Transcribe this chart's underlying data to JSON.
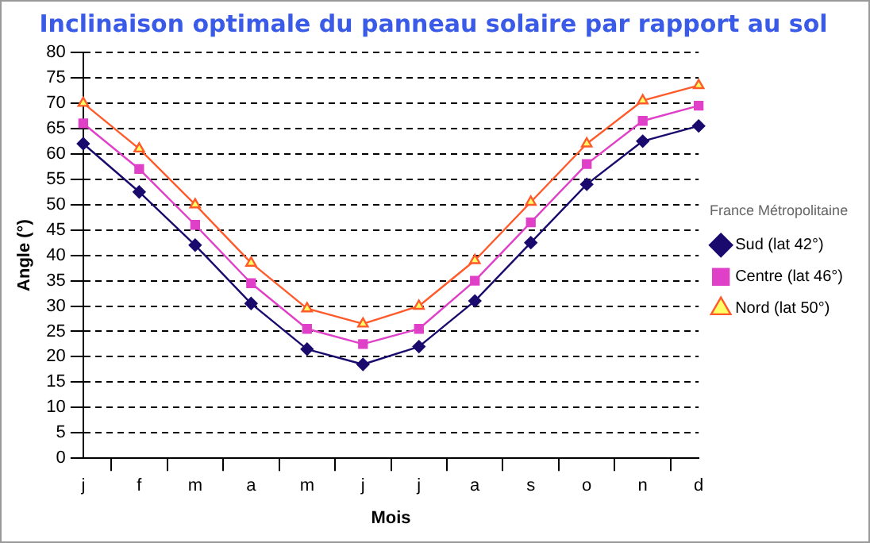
{
  "chart_data": {
    "type": "line",
    "title": "Inclinaison optimale du panneau solaire par rapport au sol",
    "xlabel": "Mois",
    "ylabel": "Angle (°)",
    "legend_title": "France Métropolitaine",
    "categories": [
      "j",
      "f",
      "m",
      "a",
      "m",
      "j",
      "j",
      "a",
      "s",
      "o",
      "n",
      "d"
    ],
    "series": [
      {
        "name": "Sud (lat 42°)",
        "color": "#1a0a6e",
        "marker": "diamond",
        "values": [
          62,
          52.5,
          42,
          30.5,
          21.5,
          18.5,
          22,
          31,
          42.5,
          54,
          62.5,
          65.5
        ]
      },
      {
        "name": "Centre (lat 46°)",
        "color": "#e040c8",
        "marker": "square",
        "values": [
          66,
          57,
          46,
          34.5,
          25.5,
          22.5,
          25.5,
          35,
          46.5,
          58,
          66.5,
          69.5
        ]
      },
      {
        "name": "Nord (lat 50°)",
        "color": "#ff5a2a",
        "marker": "triangle",
        "values": [
          70,
          61,
          50,
          38.5,
          29.5,
          26.5,
          30,
          39,
          50.5,
          62,
          70.5,
          73.5
        ]
      }
    ],
    "ylim": [
      0,
      80
    ],
    "yticks": [
      0,
      5,
      10,
      15,
      20,
      25,
      30,
      35,
      40,
      45,
      50,
      55,
      60,
      65,
      70,
      75,
      80
    ],
    "grid": "y",
    "legend": "right",
    "line_style": "solid"
  }
}
